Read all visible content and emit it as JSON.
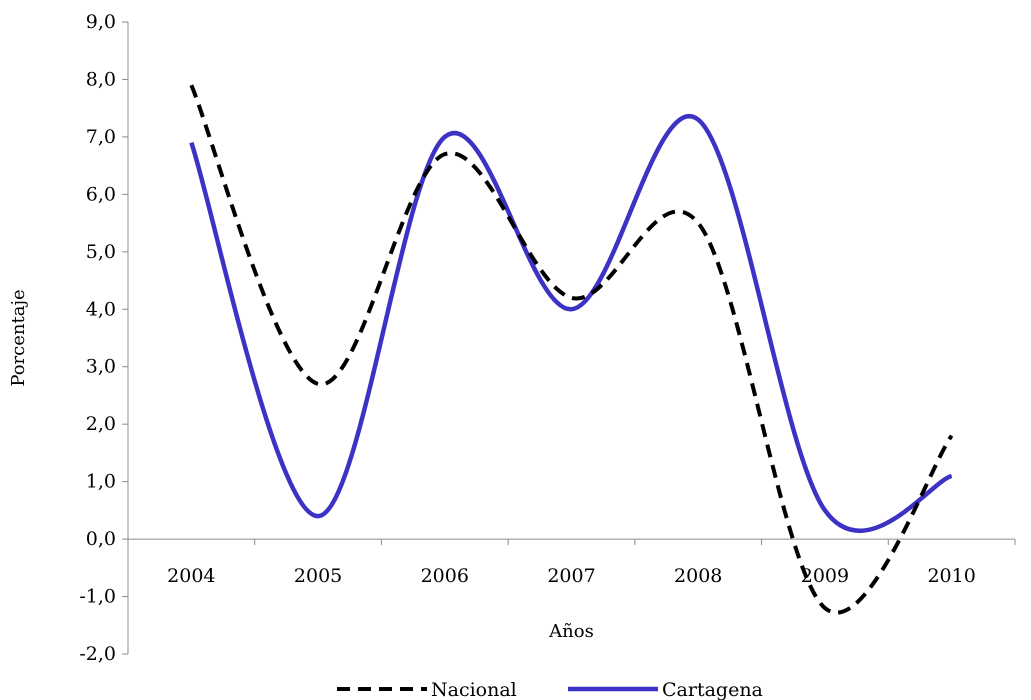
{
  "chart_data": {
    "type": "line",
    "smooth": true,
    "categories": [
      "2004",
      "2005",
      "2006",
      "2007",
      "2008",
      "2009",
      "2010"
    ],
    "series": [
      {
        "name": "Nacional",
        "values": [
          7.9,
          2.7,
          6.7,
          4.2,
          5.5,
          -1.2,
          1.8
        ],
        "color": "#000000",
        "dashed": true
      },
      {
        "name": "Cartagena",
        "values": [
          6.9,
          0.4,
          7.0,
          4.0,
          7.3,
          0.5,
          1.1
        ],
        "color": "#3c33c4",
        "dashed": false
      }
    ],
    "xlabel": "Años",
    "ylabel": "Porcentaje",
    "ylim": [
      -2.0,
      9.0
    ],
    "yticks": [
      "-2,0",
      "-1,0",
      "0,0",
      "1,0",
      "2,0",
      "3,0",
      "4,0",
      "5,0",
      "6,0",
      "7,0",
      "8,0",
      "9,0"
    ],
    "grid": false,
    "legend_position": "bottom"
  }
}
